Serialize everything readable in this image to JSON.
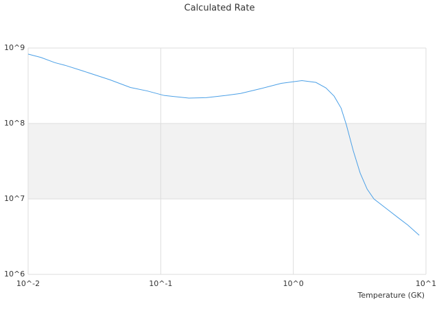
{
  "chart_data": {
    "type": "line",
    "title": "Calculated Rate",
    "x_label": "Temperature (GK)",
    "x": [
      0.01,
      0.0125,
      0.0159,
      0.019,
      0.0256,
      0.0413,
      0.059,
      0.079,
      0.106,
      0.163,
      0.22,
      0.31,
      0.4,
      0.57,
      0.81,
      1.16,
      1.48,
      1.76,
      2.03,
      2.29,
      2.51,
      2.83,
      3.19,
      3.6,
      4.05,
      5.1,
      6.2,
      7.3,
      8.9
    ],
    "series": [
      {
        "name": "Rate",
        "color": "#4a9fe6",
        "values": [
          830000000,
          750000000,
          640000000,
          590000000,
          500000000,
          380000000,
          300000000,
          270000000,
          235000000,
          217000000,
          220000000,
          235000000,
          250000000,
          290000000,
          340000000,
          370000000,
          350000000,
          296000000,
          230000000,
          160000000,
          96000000,
          43500000,
          22000000,
          13500000,
          10000000,
          7300000,
          5600000,
          4500000,
          3300000
        ]
      }
    ],
    "xscale": "log",
    "yscale": "log",
    "xlim": [
      0.01,
      10
    ],
    "ylim": [
      1000000,
      1000000000
    ],
    "xticks": [
      {
        "value": 0.01,
        "label": "10^-2"
      },
      {
        "value": 0.1,
        "label": "10^-1"
      },
      {
        "value": 1,
        "label": "10^0"
      },
      {
        "value": 10,
        "label": "10^1"
      }
    ],
    "yticks": [
      {
        "value": 1000000,
        "label": "10^6"
      },
      {
        "value": 10000000,
        "label": "10^7"
      },
      {
        "value": 100000000,
        "label": "10^8"
      },
      {
        "value": 1000000000,
        "label": "10^9"
      }
    ],
    "grid": true,
    "bands": true,
    "band_color": "#f2f2f2",
    "legend": false
  }
}
